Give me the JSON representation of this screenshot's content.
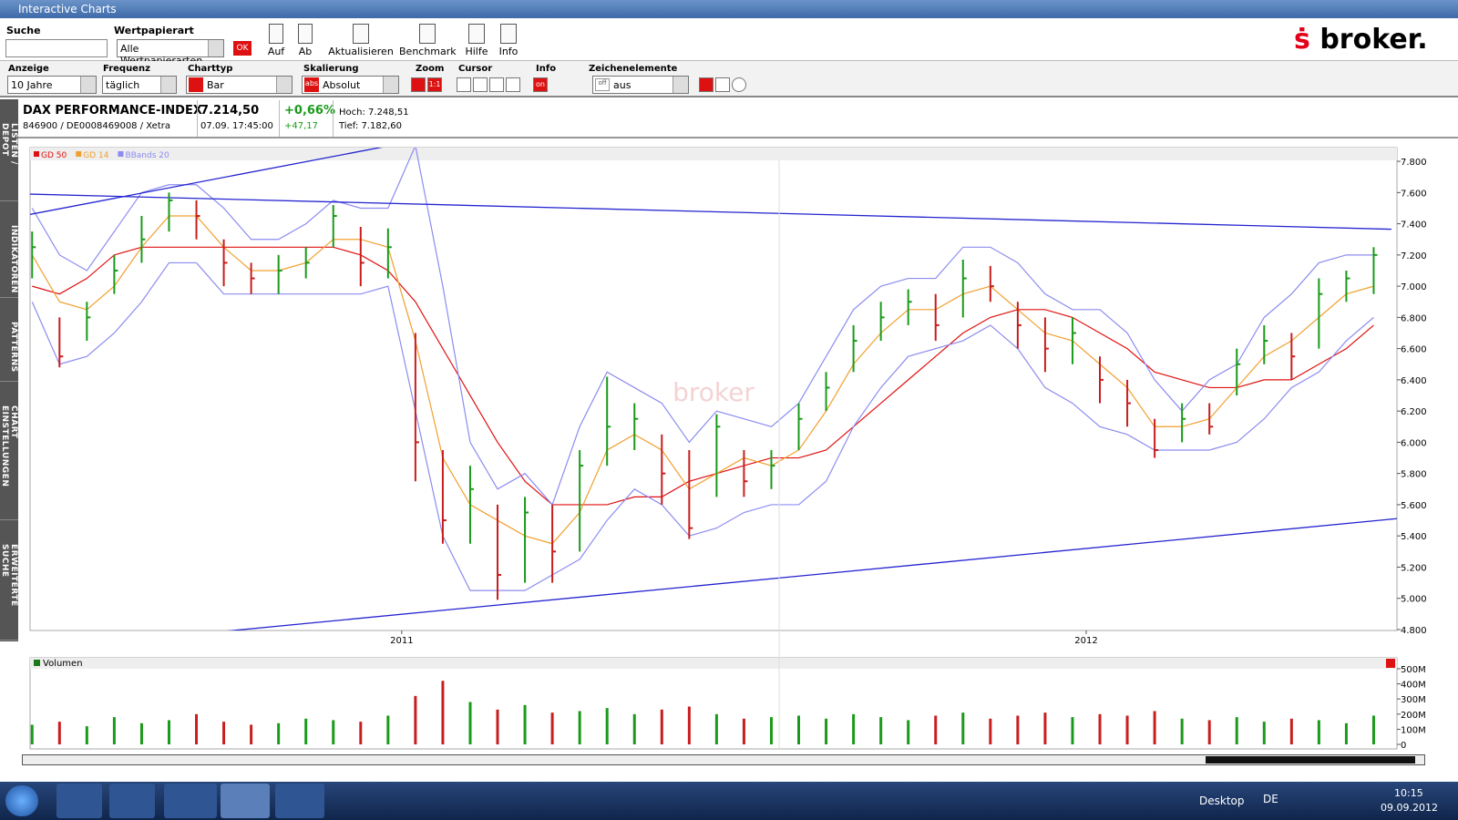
{
  "window": {
    "title": "Interactive Charts"
  },
  "toolbar": {
    "search_label": "Suche",
    "type_label": "Wertpapierart",
    "type_value": "Alle Wertpapierarten",
    "ok": "OK",
    "buttons": [
      "Auf",
      "Ab",
      "Aktualisieren",
      "Benchmark",
      "Hilfe",
      "Info"
    ],
    "logo": "broker."
  },
  "settings": {
    "fields": [
      {
        "label": "Anzeige",
        "value": "10 Jahre"
      },
      {
        "label": "Frequenz",
        "value": "täglich"
      },
      {
        "label": "Charttyp",
        "value": "Bar"
      },
      {
        "label": "Skalierung",
        "value": "Absolut"
      }
    ],
    "abs": "abs",
    "zoom": "Zoom",
    "zoom_btn": "1:1",
    "cursor": "Cursor",
    "info": "Info",
    "info_btn": "on",
    "drawing": "Zeichenelemente",
    "drawing_value": "aus",
    "drawing_off": "off"
  },
  "sidebar": [
    "LISTEN / DEPOT",
    "INDIKATOREN",
    "PATTERNS",
    "CHART EINSTELLUNGEN",
    "ERWEITERTE SUCHE"
  ],
  "instrument": {
    "name": "DAX PERFORMANCE-INDEX",
    "ids": "846900 / DE0008469008 / Xetra",
    "price": "7.214,50",
    "time": "07.09. 17:45:00",
    "change_pct": "+0,66%",
    "change": "+47,17",
    "high": "Hoch: 7.248,51",
    "low": "Tief: 7.182,60"
  },
  "chart_data": [
    {
      "type": "ohlc",
      "watermark": "broker",
      "up_color": "#1a9a1a",
      "down_color": "#c81e1e",
      "xlim": [
        2010.457,
        2012.454
      ],
      "xticks": [
        2011,
        2012
      ],
      "ylim": [
        4794,
        7888
      ],
      "yticks": [
        {
          "value": 4800,
          "label": "4.800"
        },
        {
          "value": 5000,
          "label": "5.000"
        },
        {
          "value": 5200,
          "label": "5.200"
        },
        {
          "value": 5400,
          "label": "5.400"
        },
        {
          "value": 5600,
          "label": "5.600"
        },
        {
          "value": 5800,
          "label": "5.800"
        },
        {
          "value": 6000,
          "label": "6.000"
        },
        {
          "value": 6200,
          "label": "6.200"
        },
        {
          "value": 6400,
          "label": "6.400"
        },
        {
          "value": 6600,
          "label": "6.600"
        },
        {
          "value": 6800,
          "label": "6.800"
        },
        {
          "value": 7000,
          "label": "7.000"
        },
        {
          "value": 7200,
          "label": "7.200"
        },
        {
          "value": 7400,
          "label": "7.400"
        },
        {
          "value": 7600,
          "label": "7.600"
        },
        {
          "value": 7800,
          "label": "7.800"
        }
      ],
      "x": [
        2010.46,
        2010.5,
        2010.54,
        2010.58,
        2010.62,
        2010.66,
        2010.7,
        2010.74,
        2010.78,
        2010.82,
        2010.86,
        2010.9,
        2010.94,
        2010.98,
        2011.02,
        2011.06,
        2011.1,
        2011.14,
        2011.18,
        2011.22,
        2011.26,
        2011.3,
        2011.34,
        2011.38,
        2011.42,
        2011.46,
        2011.5,
        2011.54,
        2011.58,
        2011.62,
        2011.66,
        2011.7,
        2011.74,
        2011.78,
        2011.82,
        2011.86,
        2011.9,
        2011.94,
        2011.98,
        2012.02,
        2012.06,
        2012.1,
        2012.14,
        2012.18,
        2012.22,
        2012.26,
        2012.3,
        2012.34,
        2012.38,
        2012.42
      ],
      "high": [
        7350,
        6800,
        6900,
        7200,
        7450,
        7600,
        7550,
        7300,
        7150,
        7200,
        7250,
        7520,
        7380,
        7370,
        6700,
        5950,
        5850,
        5600,
        5650,
        5600,
        5950,
        6420,
        6250,
        6050,
        5950,
        6180,
        5950,
        5950,
        6250,
        6450,
        6750,
        6900,
        6980,
        6950,
        7170,
        7130,
        6900,
        6800,
        6800,
        6550,
        6400,
        6150,
        6250,
        6250,
        6600,
        6750,
        6700,
        7050,
        7100,
        7250
      ],
      "low": [
        7050,
        6480,
        6650,
        6950,
        7150,
        7350,
        7300,
        7000,
        6950,
        6950,
        7050,
        7250,
        7000,
        7050,
        5750,
        5350,
        5350,
        4990,
        5100,
        5100,
        5300,
        5850,
        5950,
        5600,
        5380,
        5650,
        5650,
        5700,
        5950,
        6200,
        6450,
        6650,
        6750,
        6650,
        6800,
        6900,
        6600,
        6450,
        6500,
        6250,
        6100,
        5900,
        6000,
        6050,
        6300,
        6500,
        6400,
        6600,
        6900,
        6950
      ],
      "close": [
        7250,
        6550,
        6800,
        7100,
        7300,
        7550,
        7450,
        7150,
        7050,
        7100,
        7150,
        7450,
        7150,
        7250,
        6000,
        5500,
        5700,
        5150,
        5550,
        5300,
        5850,
        6100,
        6150,
        5800,
        5450,
        6100,
        5750,
        5850,
        6150,
        6350,
        6650,
        6800,
        6900,
        6750,
        7050,
        7000,
        6750,
        6600,
        6700,
        6400,
        6250,
        5950,
        6150,
        6100,
        6500,
        6650,
        6550,
        6950,
        7050,
        7200
      ],
      "series": [
        {
          "name": "GD 50",
          "color": "#e01010",
          "values": [
            7000,
            6950,
            7050,
            7200,
            7250,
            7250,
            7250,
            7250,
            7250,
            7250,
            7250,
            7250,
            7200,
            7100,
            6900,
            6600,
            6300,
            6000,
            5750,
            5600,
            5600,
            5600,
            5650,
            5650,
            5750,
            5800,
            5850,
            5900,
            5900,
            5950,
            6100,
            6250,
            6400,
            6550,
            6700,
            6800,
            6850,
            6850,
            6800,
            6700,
            6600,
            6450,
            6400,
            6350,
            6350,
            6400,
            6400,
            6500,
            6600,
            6750
          ]
        },
        {
          "name": "GD 14",
          "color": "#f0a030",
          "values": [
            7200,
            6900,
            6850,
            7000,
            7250,
            7450,
            7450,
            7250,
            7100,
            7100,
            7150,
            7300,
            7300,
            7250,
            6650,
            5900,
            5600,
            5500,
            5400,
            5350,
            5550,
            5950,
            6050,
            5950,
            5700,
            5800,
            5900,
            5850,
            5950,
            6200,
            6500,
            6700,
            6850,
            6850,
            6950,
            7000,
            6850,
            6700,
            6650,
            6500,
            6350,
            6100,
            6100,
            6150,
            6350,
            6550,
            6650,
            6800,
            6950,
            7000
          ]
        },
        {
          "name": "BBands 20",
          "color": "#8c8cf0",
          "values": [
            7500,
            7200,
            7100,
            7350,
            7600,
            7650,
            7650,
            7500,
            7300,
            7300,
            7400,
            7550,
            7500,
            7500,
            7900,
            7000,
            6000,
            5700,
            5800,
            5600,
            6100,
            6450,
            6350,
            6250,
            6000,
            6200,
            6150,
            6100,
            6250,
            6550,
            6850,
            7000,
            7050,
            7050,
            7250,
            7250,
            7150,
            6950,
            6850,
            6850,
            6700,
            6400,
            6200,
            6400,
            6500,
            6800,
            6950,
            7150,
            7200,
            7200
          ],
          "lower": [
            6900,
            6500,
            6550,
            6700,
            6900,
            7150,
            7150,
            6950,
            6950,
            6950,
            6950,
            6950,
            6950,
            7000,
            6200,
            5400,
            5050,
            5050,
            5050,
            5150,
            5250,
            5500,
            5700,
            5600,
            5400,
            5450,
            5550,
            5600,
            5600,
            5750,
            6100,
            6350,
            6550,
            6600,
            6650,
            6750,
            6600,
            6350,
            6250,
            6100,
            6050,
            5950,
            5950,
            5950,
            6000,
            6150,
            6350,
            6450,
            6650,
            6800
          ]
        }
      ],
      "trendlines": [
        {
          "color": "#2424d0",
          "x": [
            2010.457,
            2011.0
          ],
          "y": [
            7460,
            7915
          ]
        },
        {
          "color": "#2424d0",
          "x": [
            2010.457,
            2012.446
          ],
          "y": [
            7590,
            7365
          ]
        },
        {
          "color": "#2424d0",
          "x": [
            2010.49,
            2012.457
          ],
          "y": [
            4683,
            5512
          ]
        }
      ]
    },
    {
      "type": "bar",
      "title": "Volumen",
      "ylim": [
        -30,
        572
      ],
      "yticks": [
        0,
        {
          "value": 100,
          "label": "100M"
        },
        {
          "value": 200,
          "label": "200M"
        },
        {
          "value": 300,
          "label": "300M"
        },
        {
          "value": 400,
          "label": "400M"
        },
        {
          "value": 500,
          "label": "500M"
        }
      ],
      "values": [
        130,
        150,
        120,
        180,
        140,
        160,
        200,
        150,
        130,
        140,
        170,
        160,
        150,
        190,
        320,
        420,
        280,
        230,
        260,
        210,
        220,
        240,
        200,
        230,
        250,
        200,
        170,
        180,
        190,
        170,
        200,
        180,
        160,
        190,
        210,
        170,
        190,
        210,
        180,
        200,
        190,
        220,
        170,
        160,
        180,
        150,
        170,
        160,
        140,
        190
      ]
    }
  ],
  "taskbar": {
    "desktop": "Desktop",
    "lang": "DE",
    "time": "10:15",
    "date": "09.09.2012"
  }
}
